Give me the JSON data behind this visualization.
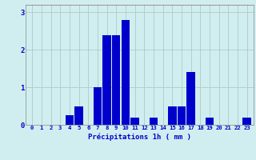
{
  "categories": [
    0,
    1,
    2,
    3,
    4,
    5,
    6,
    7,
    8,
    9,
    10,
    11,
    12,
    13,
    14,
    15,
    16,
    17,
    18,
    19,
    20,
    21,
    22,
    23
  ],
  "values": [
    0,
    0,
    0,
    0,
    0.25,
    0.5,
    0,
    1.0,
    2.4,
    2.4,
    2.8,
    0.2,
    0,
    0.2,
    0,
    0.5,
    0.5,
    1.4,
    0,
    0.2,
    0,
    0,
    0,
    0.2
  ],
  "bar_color": "#0000cc",
  "background_color": "#d0eef0",
  "grid_color": "#b0c8c8",
  "xlabel": "Précipitations 1h ( mm )",
  "tick_color": "#0000cc",
  "ylim": [
    0,
    3.2
  ],
  "yticks": [
    0,
    1,
    2,
    3
  ],
  "figsize": [
    3.2,
    2.0
  ],
  "dpi": 100
}
